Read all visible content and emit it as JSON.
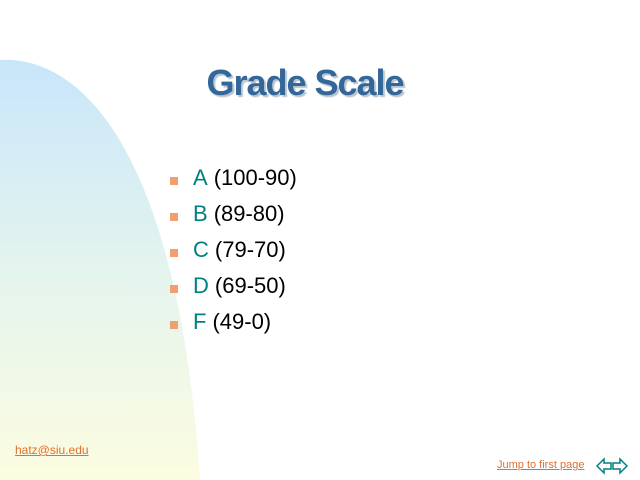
{
  "slide": {
    "title": "Grade Scale",
    "items": [
      {
        "letter": "A",
        "range": "(100-90)"
      },
      {
        "letter": "B",
        "range": "(89-80)"
      },
      {
        "letter": "C",
        "range": "(79-70)"
      },
      {
        "letter": "D",
        "range": "(69-50)"
      },
      {
        "letter": "F",
        "range": "(49-0)"
      }
    ]
  },
  "footer": {
    "email": "hatz@siu.edu",
    "jump_label": "Jump to first page",
    "prev_icon": "arrow-left-icon",
    "next_icon": "arrow-right-icon"
  },
  "colors": {
    "title": "#336699",
    "letter": "#008080",
    "bullet": "#f0a070",
    "link": "#e07030"
  }
}
